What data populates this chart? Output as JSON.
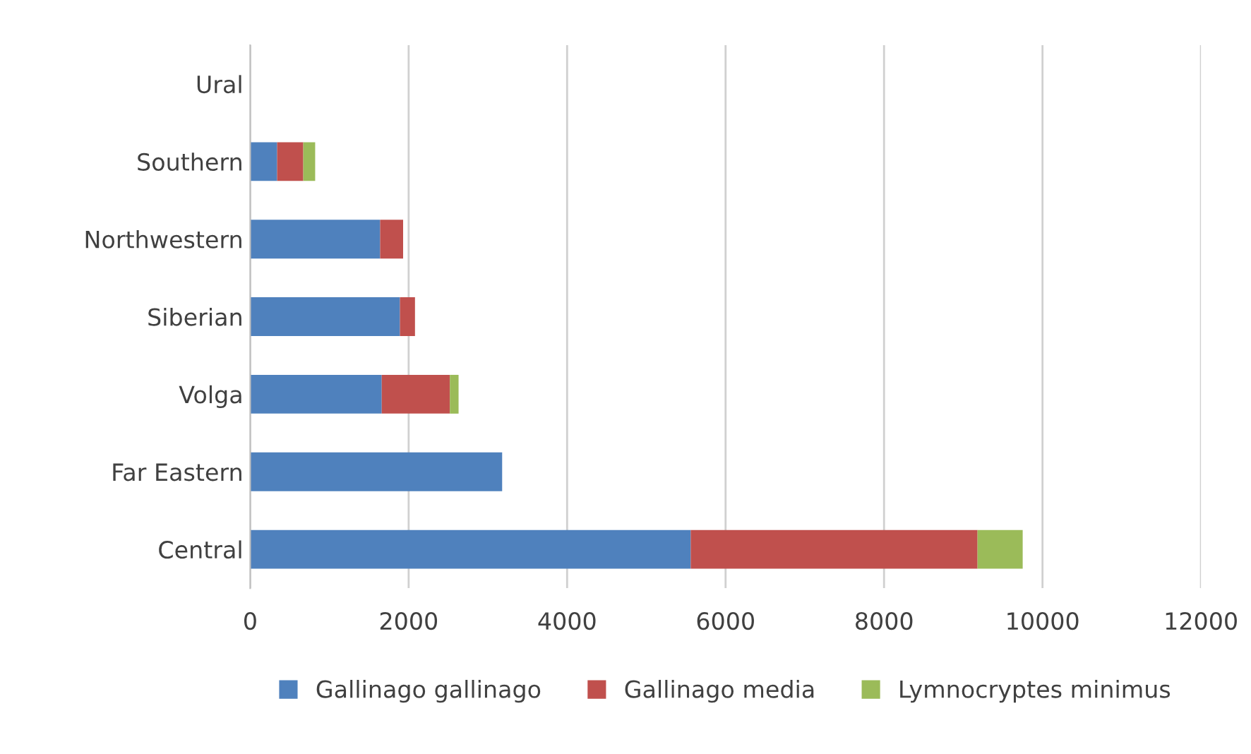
{
  "chart_data": {
    "type": "bar",
    "orientation": "horizontal",
    "stacked": true,
    "categories": [
      "Ural",
      "Southern",
      "Northwestern",
      "Siberian",
      "Volga",
      "Far Eastern",
      "Central"
    ],
    "series": [
      {
        "name": "Gallinago gallinago",
        "color": "#4f81bd",
        "values": [
          null,
          340,
          1640,
          1890,
          1660,
          3180,
          5560
        ]
      },
      {
        "name": "Gallinago media",
        "color": "#c0504d",
        "values": [
          null,
          330,
          290,
          190,
          860,
          null,
          3620
        ]
      },
      {
        "name": "Lymnocryptes minimus",
        "color": "#9bbb59",
        "values": [
          null,
          150,
          null,
          null,
          110,
          null,
          570
        ]
      }
    ],
    "xlim": [
      0,
      12000
    ],
    "xticks": [
      0,
      2000,
      4000,
      6000,
      8000,
      10000,
      12000
    ],
    "grid": "x",
    "legend": "bottom"
  }
}
